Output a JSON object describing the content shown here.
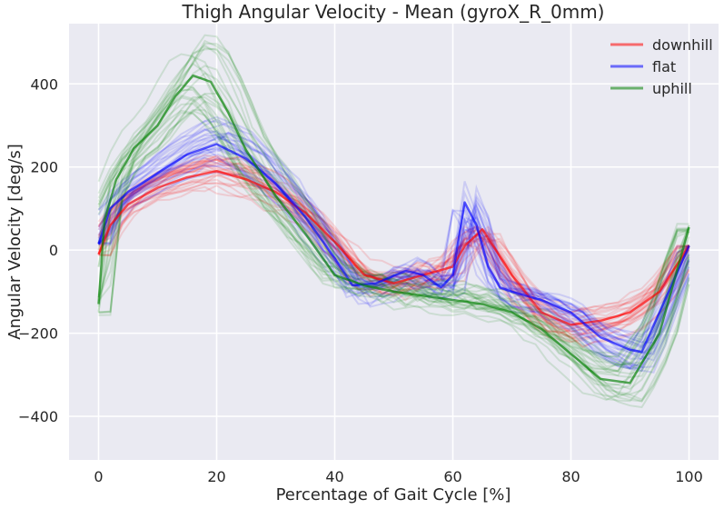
{
  "chart_data": {
    "type": "line",
    "title": "Thigh Angular Velocity  - Mean (gyroX_R_0mm)",
    "xlabel": "Percentage of Gait Cycle [%]",
    "ylabel": "Angular Velocity [deg/s]",
    "xlim": [
      -5,
      105
    ],
    "ylim": [
      -505,
      545
    ],
    "xticks": [
      0,
      20,
      40,
      60,
      80,
      100
    ],
    "yticks": [
      -400,
      -200,
      0,
      200,
      400
    ],
    "xtick_labels": [
      "0",
      "20",
      "40",
      "60",
      "80",
      "100"
    ],
    "ytick_labels": [
      "−400",
      "−200",
      "0",
      "200",
      "400"
    ],
    "grid": true,
    "legend_position": "top-right",
    "background": "#eaeaf2",
    "series": [
      {
        "name": "downhill",
        "color": "#ff0000",
        "x": [
          0,
          2,
          5,
          10,
          15,
          20,
          25,
          30,
          35,
          40,
          45,
          50,
          55,
          60,
          62,
          65,
          70,
          75,
          80,
          85,
          90,
          95,
          100
        ],
        "y": [
          -10,
          60,
          110,
          150,
          175,
          190,
          170,
          140,
          90,
          20,
          -60,
          -80,
          -60,
          -40,
          10,
          50,
          -60,
          -150,
          -180,
          -170,
          -150,
          -100,
          10
        ],
        "spread": 40
      },
      {
        "name": "flat",
        "color": "#0000ff",
        "x": [
          0,
          2,
          5,
          10,
          15,
          20,
          25,
          30,
          35,
          40,
          43,
          47,
          52,
          55,
          58,
          60,
          62,
          64,
          66,
          68,
          70,
          75,
          80,
          85,
          90,
          92,
          95,
          100
        ],
        "y": [
          15,
          100,
          140,
          185,
          230,
          255,
          220,
          160,
          80,
          -20,
          -85,
          -80,
          -50,
          -60,
          -90,
          -60,
          115,
          60,
          -40,
          -90,
          -100,
          -120,
          -150,
          -210,
          -240,
          -245,
          -150,
          10
        ],
        "spread": 60
      },
      {
        "name": "uphill",
        "color": "#008000",
        "x": [
          0,
          1,
          3,
          6,
          10,
          13,
          16,
          19,
          22,
          25,
          30,
          35,
          40,
          45,
          50,
          55,
          60,
          65,
          70,
          75,
          80,
          85,
          90,
          95,
          100
        ],
        "y": [
          -130,
          70,
          170,
          245,
          300,
          370,
          420,
          405,
          330,
          240,
          130,
          40,
          -60,
          -85,
          -100,
          -110,
          -120,
          -130,
          -150,
          -190,
          -250,
          -310,
          -320,
          -200,
          55
        ],
        "spread": 70
      }
    ]
  }
}
